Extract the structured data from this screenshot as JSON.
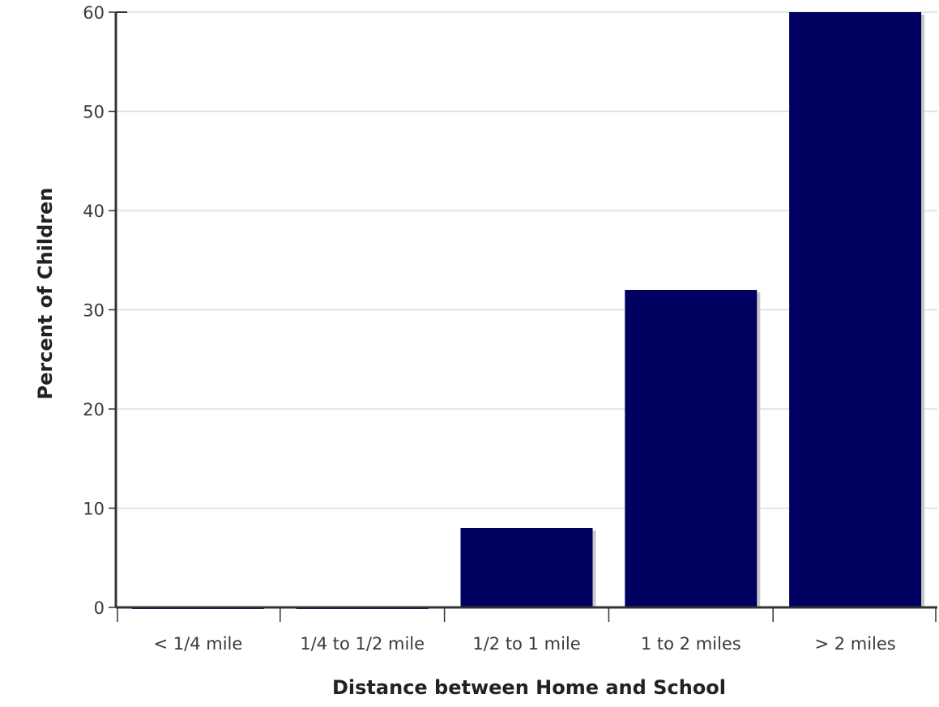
{
  "chart_data": {
    "type": "bar",
    "categories": [
      "< 1/4 mile",
      "1/4 to 1/2 mile",
      "1/2 to 1 mile",
      "1 to 2 miles",
      "> 2 miles"
    ],
    "values": [
      0,
      0,
      8,
      32,
      60
    ],
    "title": "",
    "xlabel": "Distance between Home and School",
    "ylabel": "Percent of Children",
    "ylim": [
      0,
      60
    ],
    "yticks": [
      0,
      10,
      20,
      30,
      40,
      50,
      60
    ],
    "grid": true,
    "colors": {
      "bar": "#000060",
      "bar_shadow": "#c8c8c8",
      "grid": "#dddddd",
      "axis": "#333333"
    }
  }
}
